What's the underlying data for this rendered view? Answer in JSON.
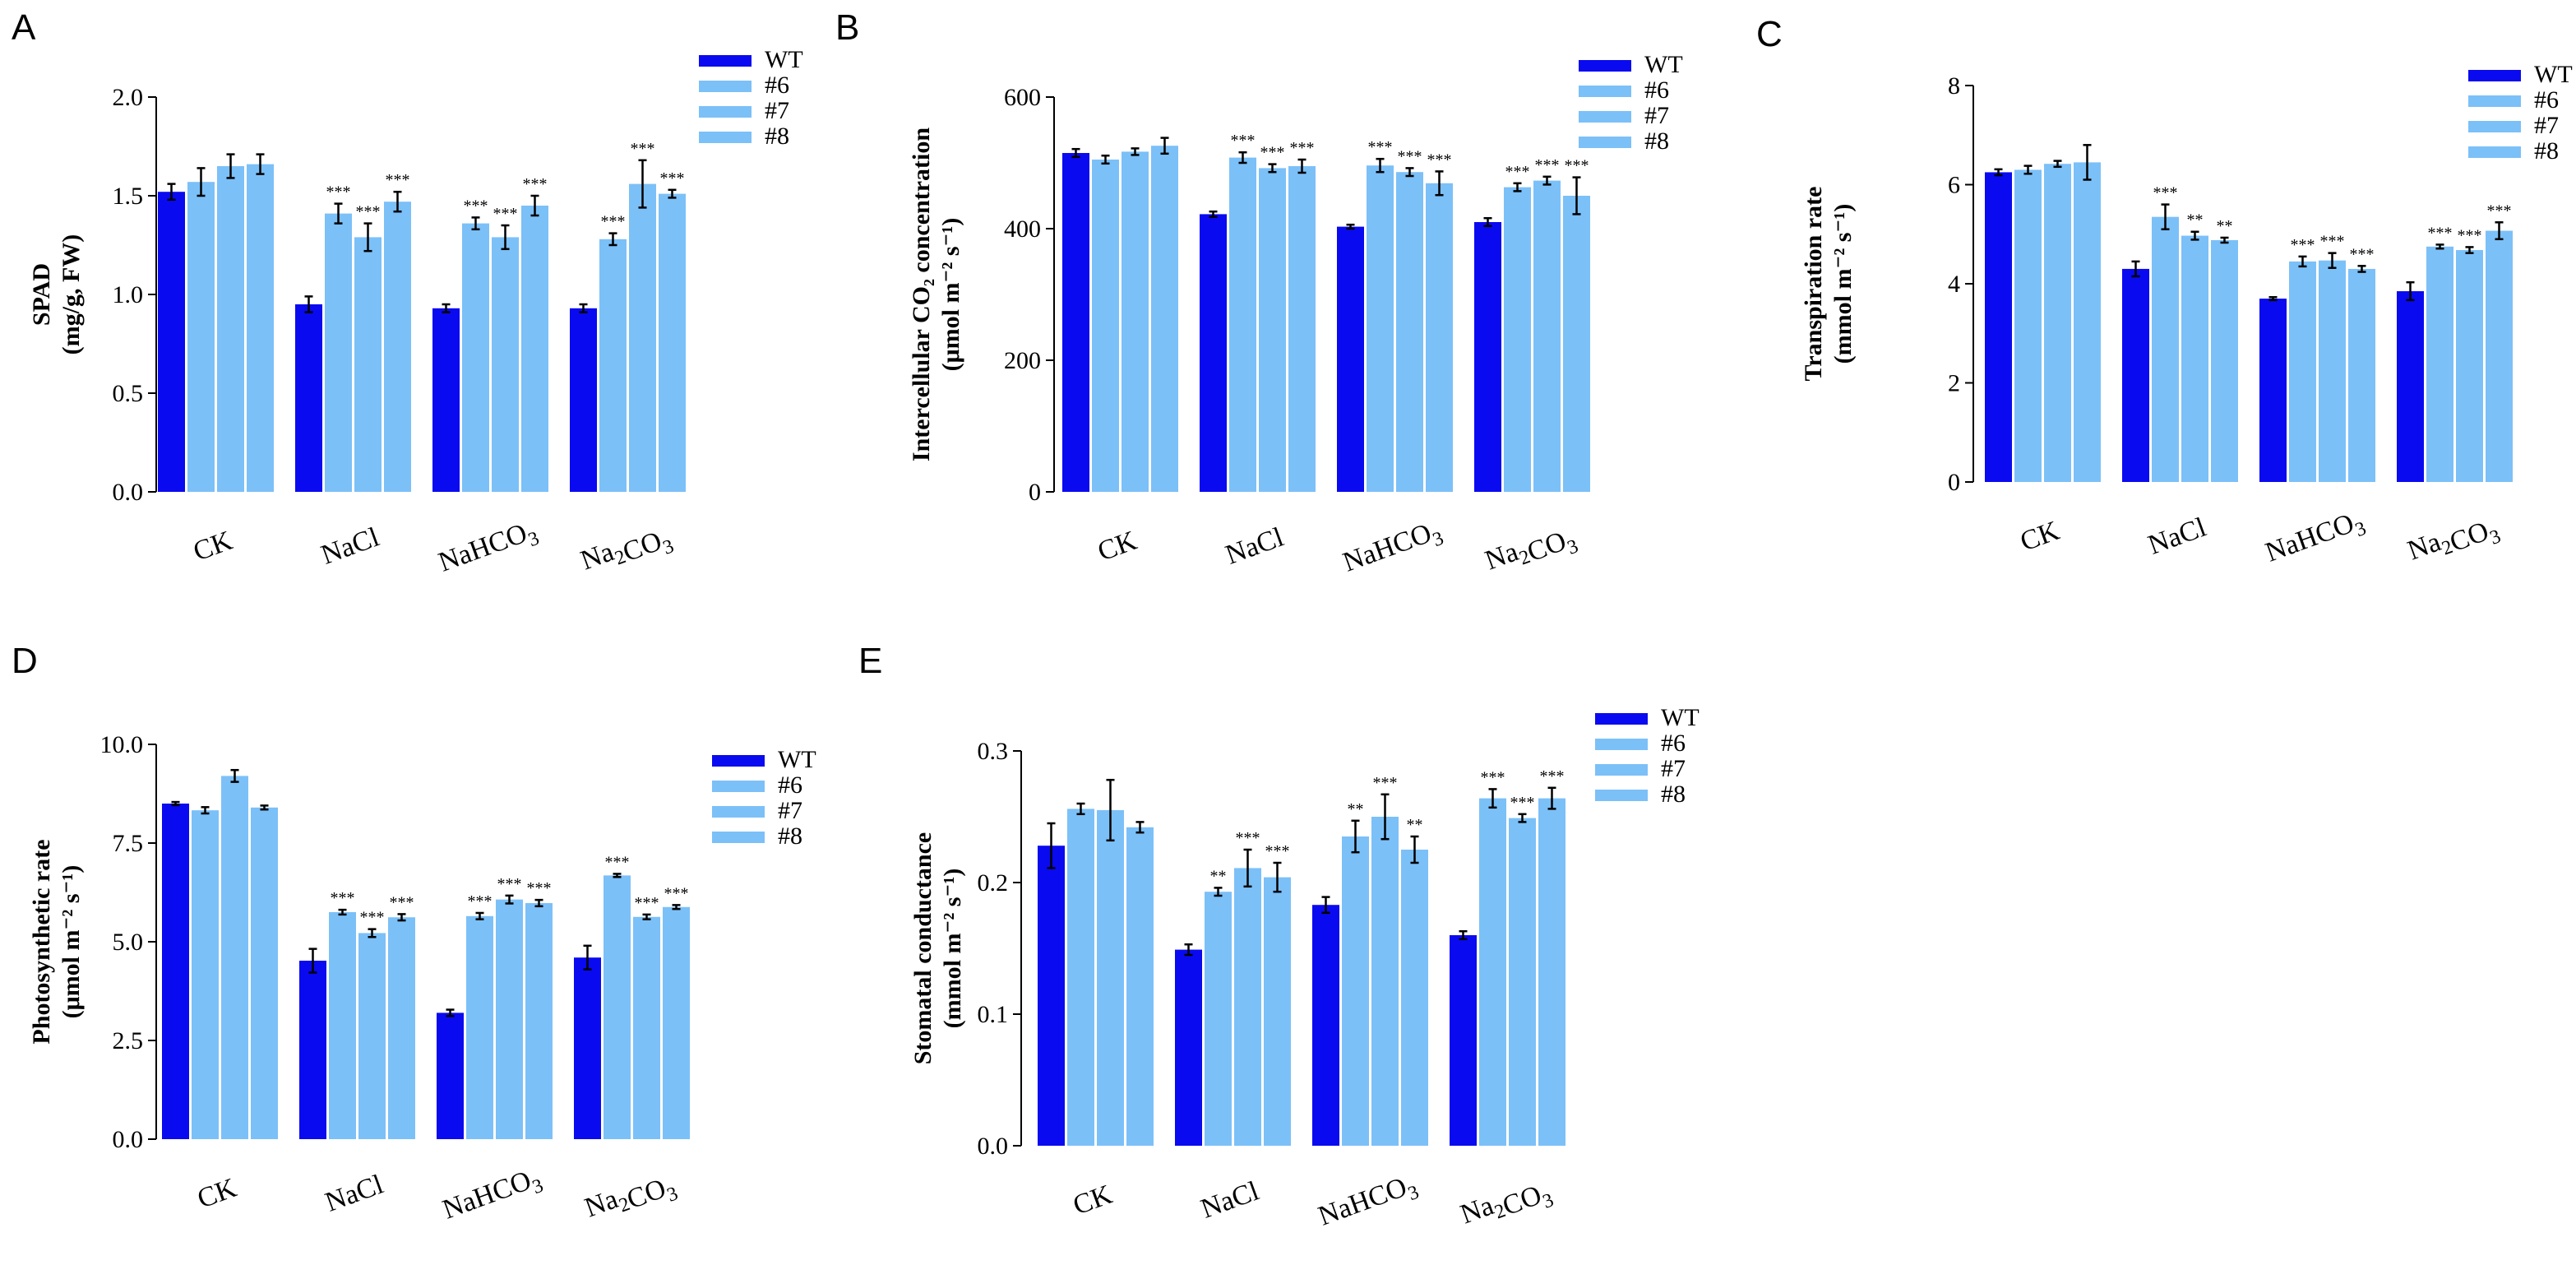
{
  "colors": {
    "wt": "#0a0af0",
    "line": "#7cc0f8",
    "axis": "#000000"
  },
  "legend": [
    "WT",
    "#6",
    "#7",
    "#8"
  ],
  "chart_data": [
    {
      "panel": "A",
      "type": "bar",
      "title": "",
      "ylabel": [
        "SPAD",
        "(mg/g, FW)"
      ],
      "ylim": [
        0,
        2.0
      ],
      "ticks": [
        "0.0",
        "0.5",
        "1.0",
        "1.5",
        "2.0"
      ],
      "tick_values": [
        0,
        0.5,
        1.0,
        1.5,
        2.0
      ],
      "categories": [
        "CK",
        "NaCl",
        "NaHCO3",
        "Na2CO3"
      ],
      "series": [
        {
          "name": "WT",
          "values": [
            1.52,
            0.95,
            0.93,
            0.93
          ],
          "errors": [
            0.04,
            0.04,
            0.02,
            0.02
          ],
          "stars": [
            "",
            "",
            "",
            ""
          ]
        },
        {
          "name": "#6",
          "values": [
            1.57,
            1.41,
            1.36,
            1.28
          ],
          "errors": [
            0.07,
            0.05,
            0.03,
            0.03
          ],
          "stars": [
            "",
            "***",
            "***",
            "***"
          ]
        },
        {
          "name": "#7",
          "values": [
            1.65,
            1.29,
            1.29,
            1.56
          ],
          "errors": [
            0.06,
            0.07,
            0.06,
            0.12
          ],
          "stars": [
            "",
            "***",
            "***",
            "***"
          ]
        },
        {
          "name": "#8",
          "values": [
            1.66,
            1.47,
            1.45,
            1.51
          ],
          "errors": [
            0.05,
            0.05,
            0.05,
            0.02
          ],
          "stars": [
            "",
            "***",
            "***",
            "***"
          ]
        }
      ]
    },
    {
      "panel": "B",
      "type": "bar",
      "title": "",
      "ylabel": [
        "Intercellular CO₂ concentration",
        "(μmol m⁻² s⁻¹)"
      ],
      "ylim": [
        0,
        600
      ],
      "ticks": [
        "0",
        "200",
        "400",
        "600"
      ],
      "tick_values": [
        0,
        200,
        400,
        600
      ],
      "categories": [
        "CK",
        "NaCl",
        "NaHCO3",
        "Na2CO3"
      ],
      "series": [
        {
          "name": "WT",
          "values": [
            515,
            422,
            403,
            410
          ],
          "errors": [
            6,
            4,
            3,
            6
          ],
          "stars": [
            "",
            "",
            "",
            ""
          ]
        },
        {
          "name": "#6",
          "values": [
            505,
            508,
            496,
            463
          ],
          "errors": [
            6,
            8,
            10,
            6
          ],
          "stars": [
            "",
            "***",
            "***",
            "***"
          ]
        },
        {
          "name": "#7",
          "values": [
            517,
            492,
            486,
            473
          ],
          "errors": [
            5,
            6,
            6,
            6
          ],
          "stars": [
            "",
            "***",
            "***",
            "***"
          ]
        },
        {
          "name": "#8",
          "values": [
            526,
            495,
            469,
            450
          ],
          "errors": [
            12,
            10,
            18,
            28
          ],
          "stars": [
            "",
            "***",
            "***",
            "***"
          ]
        }
      ]
    },
    {
      "panel": "C",
      "type": "bar",
      "title": "",
      "ylabel": [
        "Transpiration rate",
        "(mmol m⁻² s⁻¹)"
      ],
      "ylim": [
        0,
        8
      ],
      "ticks": [
        "0",
        "2",
        "4",
        "6",
        "8"
      ],
      "tick_values": [
        0,
        2,
        4,
        6,
        8
      ],
      "categories": [
        "CK",
        "NaCl",
        "NaHCO3",
        "Na2CO3"
      ],
      "series": [
        {
          "name": "WT",
          "values": [
            6.25,
            4.3,
            3.7,
            3.85
          ],
          "errors": [
            0.06,
            0.15,
            0.03,
            0.18
          ],
          "stars": [
            "",
            "",
            "",
            ""
          ]
        },
        {
          "name": "#6",
          "values": [
            6.3,
            5.35,
            4.45,
            4.75
          ],
          "errors": [
            0.08,
            0.25,
            0.1,
            0.04
          ],
          "stars": [
            "",
            "***",
            "***",
            "***"
          ]
        },
        {
          "name": "#7",
          "values": [
            6.42,
            4.97,
            4.47,
            4.68
          ],
          "errors": [
            0.06,
            0.08,
            0.15,
            0.06
          ],
          "stars": [
            "",
            "**",
            "***",
            "***"
          ]
        },
        {
          "name": "#8",
          "values": [
            6.45,
            4.88,
            4.3,
            5.07
          ],
          "errors": [
            0.35,
            0.05,
            0.06,
            0.17
          ],
          "stars": [
            "",
            "**",
            "***",
            "***"
          ]
        }
      ]
    },
    {
      "panel": "D",
      "type": "bar",
      "title": "",
      "ylabel": [
        "Photosynthetic rate",
        "(μmol m⁻² s⁻¹)"
      ],
      "ylim": [
        0,
        10
      ],
      "ticks": [
        "0.0",
        "2.5",
        "5.0",
        "7.5",
        "10.0"
      ],
      "tick_values": [
        0,
        2.5,
        5.0,
        7.5,
        10.0
      ],
      "categories": [
        "CK",
        "NaCl",
        "NaHCO3",
        "Na2CO3"
      ],
      "series": [
        {
          "name": "WT",
          "values": [
            8.5,
            4.52,
            3.2,
            4.6
          ],
          "errors": [
            0.04,
            0.3,
            0.08,
            0.3
          ],
          "stars": [
            "",
            "",
            "",
            ""
          ]
        },
        {
          "name": "#6",
          "values": [
            8.33,
            5.75,
            5.65,
            6.68
          ],
          "errors": [
            0.08,
            0.06,
            0.08,
            0.04
          ],
          "stars": [
            "",
            "***",
            "***",
            "***"
          ]
        },
        {
          "name": "#7",
          "values": [
            9.2,
            5.22,
            6.07,
            5.63
          ],
          "errors": [
            0.15,
            0.1,
            0.1,
            0.06
          ],
          "stars": [
            "",
            "***",
            "***",
            "***"
          ]
        },
        {
          "name": "#8",
          "values": [
            8.4,
            5.62,
            5.98,
            5.88
          ],
          "errors": [
            0.05,
            0.08,
            0.08,
            0.05
          ],
          "stars": [
            "",
            "***",
            "***",
            "***"
          ]
        }
      ]
    },
    {
      "panel": "E",
      "type": "bar",
      "title": "",
      "ylabel": [
        "Stomatal conductance",
        "(mmol m⁻² s⁻¹)"
      ],
      "ylim": [
        0,
        0.3
      ],
      "ticks": [
        "0.0",
        "0.1",
        "0.2",
        "0.3"
      ],
      "tick_values": [
        0,
        0.1,
        0.2,
        0.3
      ],
      "categories": [
        "CK",
        "NaCl",
        "NaHCO3",
        "Na2CO3"
      ],
      "series": [
        {
          "name": "WT",
          "values": [
            0.228,
            0.149,
            0.183,
            0.16
          ],
          "errors": [
            0.017,
            0.004,
            0.006,
            0.003
          ],
          "stars": [
            "",
            "",
            "",
            ""
          ]
        },
        {
          "name": "#6",
          "values": [
            0.256,
            0.193,
            0.235,
            0.264
          ],
          "errors": [
            0.004,
            0.003,
            0.012,
            0.007
          ],
          "stars": [
            "",
            "**",
            "**",
            "***"
          ]
        },
        {
          "name": "#7",
          "values": [
            0.255,
            0.211,
            0.25,
            0.249
          ],
          "errors": [
            0.023,
            0.014,
            0.017,
            0.003
          ],
          "stars": [
            "",
            "***",
            "***",
            "***"
          ]
        },
        {
          "name": "#8",
          "values": [
            0.242,
            0.204,
            0.225,
            0.264
          ],
          "errors": [
            0.004,
            0.011,
            0.01,
            0.008
          ],
          "stars": [
            "",
            "***",
            "**",
            "***"
          ]
        }
      ]
    }
  ]
}
